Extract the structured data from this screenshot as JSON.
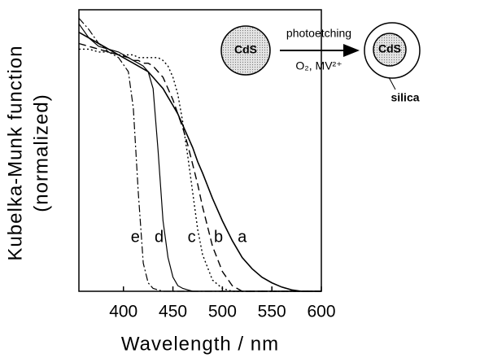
{
  "chart_data": {
    "type": "line",
    "xlabel": "Wavelength  /  nm",
    "ylabel": [
      "Kubelka-Munk function",
      "(normalized)"
    ],
    "xlim": [
      355,
      600
    ],
    "xticks": [
      400,
      450,
      500,
      550,
      600
    ],
    "ylim": [
      0,
      1
    ],
    "x": [
      355,
      365,
      375,
      385,
      395,
      405,
      410,
      415,
      420,
      425,
      430,
      435,
      440,
      445,
      450,
      455,
      460,
      465,
      470,
      475,
      480,
      490,
      500,
      510,
      520,
      530,
      540,
      550,
      560,
      570,
      580,
      590,
      600
    ],
    "series": [
      {
        "name": "a",
        "color": "#000000",
        "dash": "solid",
        "width": 1.6,
        "values": [
          0.92,
          0.9,
          0.88,
          0.86,
          0.84,
          0.82,
          0.81,
          0.8,
          0.79,
          0.78,
          0.76,
          0.74,
          0.72,
          0.69,
          0.66,
          0.63,
          0.59,
          0.55,
          0.51,
          0.46,
          0.42,
          0.33,
          0.25,
          0.18,
          0.12,
          0.08,
          0.05,
          0.03,
          0.015,
          0.005,
          0,
          0,
          0
        ]
      },
      {
        "name": "b",
        "color": "#000000",
        "dash": "dashed",
        "width": 1.4,
        "values": [
          0.88,
          0.87,
          0.86,
          0.85,
          0.84,
          0.83,
          0.82,
          0.82,
          0.81,
          0.81,
          0.8,
          0.78,
          0.76,
          0.72,
          0.68,
          0.63,
          0.58,
          0.52,
          0.45,
          0.38,
          0.3,
          0.16,
          0.07,
          0.02,
          0,
          0,
          0,
          0,
          0,
          0,
          0,
          0,
          0
        ]
      },
      {
        "name": "c",
        "color": "#000000",
        "dash": "dotted",
        "width": 1.4,
        "values": [
          0.86,
          0.86,
          0.85,
          0.85,
          0.84,
          0.84,
          0.84,
          0.83,
          0.83,
          0.83,
          0.83,
          0.83,
          0.82,
          0.8,
          0.76,
          0.7,
          0.6,
          0.48,
          0.35,
          0.22,
          0.13,
          0.04,
          0.01,
          0,
          0,
          0,
          0,
          0,
          0,
          0,
          0,
          0,
          0
        ]
      },
      {
        "name": "d",
        "color": "#000000",
        "dash": "solid",
        "width": 1.2,
        "values": [
          0.95,
          0.9,
          0.87,
          0.86,
          0.85,
          0.83,
          0.82,
          0.81,
          0.8,
          0.78,
          0.72,
          0.5,
          0.25,
          0.12,
          0.05,
          0.02,
          0.01,
          0.005,
          0,
          0,
          0,
          0,
          0,
          0,
          0,
          0,
          0,
          0,
          0,
          0,
          0,
          0,
          0
        ]
      },
      {
        "name": "e",
        "color": "#000000",
        "dash": "dashdot",
        "width": 1.2,
        "values": [
          0.97,
          0.93,
          0.88,
          0.85,
          0.83,
          0.78,
          0.65,
          0.35,
          0.1,
          0.03,
          0.01,
          0.005,
          0,
          0,
          0,
          0,
          0,
          0,
          0,
          0,
          0,
          0,
          0,
          0,
          0,
          0,
          0,
          0,
          0,
          0,
          0,
          0,
          0
        ]
      }
    ]
  },
  "inset": {
    "left_core": "CdS",
    "arrow_top": "photoetching",
    "arrow_bottom": "O₂, MV²⁺",
    "right_core": "CdS",
    "shell": "silica"
  }
}
